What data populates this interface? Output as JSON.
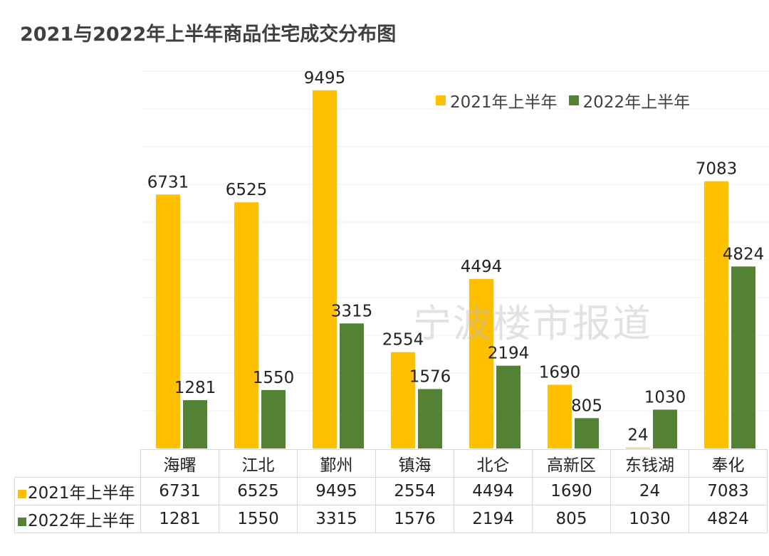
{
  "chart_data": {
    "type": "bar",
    "title": "2021与2022年上半年商品住宅成交分布图",
    "categories": [
      "海曙",
      "江北",
      "鄞州",
      "镇海",
      "北仑",
      "高新区",
      "东钱湖",
      "奉化"
    ],
    "series": [
      {
        "name": "2021年上半年",
        "color": "#FFC000",
        "values": [
          6731,
          6525,
          9495,
          2554,
          4494,
          1690,
          24,
          7083
        ]
      },
      {
        "name": "2022年上半年",
        "color": "#548235",
        "values": [
          1281,
          1550,
          3315,
          1576,
          2194,
          805,
          1030,
          4824
        ]
      }
    ],
    "ylim": [
      0,
      10000
    ],
    "grid": true,
    "legend": "top-right",
    "data_table": true
  },
  "watermark": "宁波楼市报道"
}
